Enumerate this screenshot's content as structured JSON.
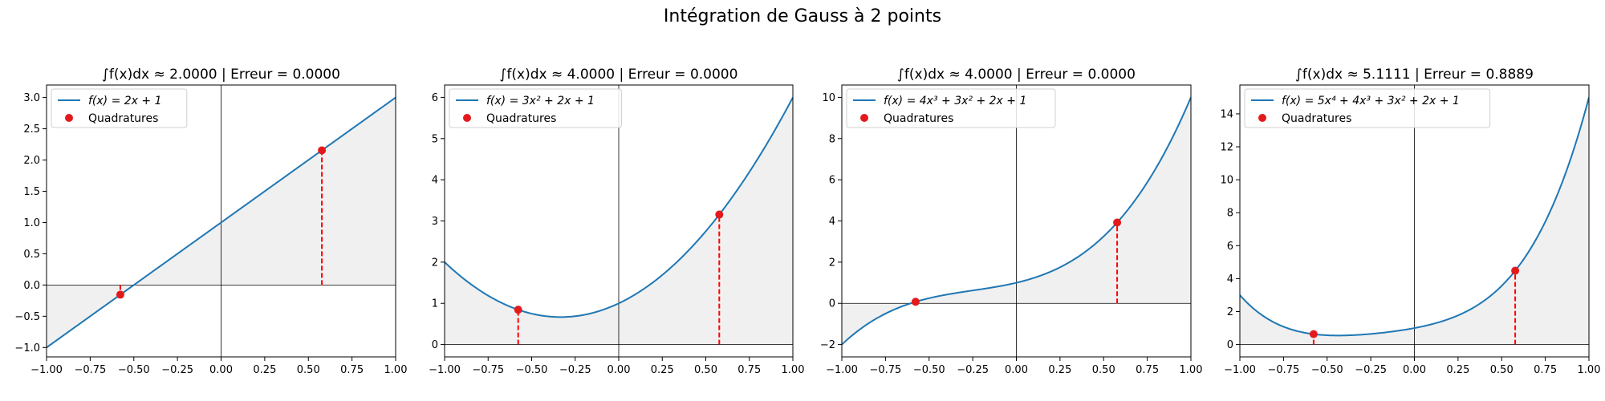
{
  "figure": {
    "title": "Intégration de Gauss à 2 points"
  },
  "colors": {
    "curve": "#1f77b4",
    "points": "#e31a1c",
    "stem": "#ff0000",
    "fill": "#f0f0f0",
    "axis_line": "#000000"
  },
  "chart_data": [
    {
      "type": "line",
      "title": "∫f(x)dx ≈ 2.0000 | Erreur = 0.0000",
      "series": [
        {
          "name": "f(x) = 2x + 1",
          "coefficients": [
            1,
            2
          ]
        },
        {
          "name": "Quadratures",
          "x": [
            -0.5774,
            0.5774
          ],
          "y": [
            -0.1547,
            2.1547
          ]
        }
      ],
      "xlim": [
        -1,
        1
      ],
      "ylim": [
        -1.15,
        3.2
      ],
      "xticks": [
        -1.0,
        -0.75,
        -0.5,
        -0.25,
        0.0,
        0.25,
        0.5,
        0.75,
        1.0
      ],
      "xtick_labels": [
        "−1.00",
        "−0.75",
        "−0.50",
        "−0.25",
        "0.00",
        "0.25",
        "0.50",
        "0.75",
        "1.00"
      ],
      "yticks": [
        -1.0,
        -0.5,
        0.0,
        0.5,
        1.0,
        1.5,
        2.0,
        2.5,
        3.0
      ],
      "ytick_labels": [
        "−1.0",
        "−0.5",
        "0.0",
        "0.5",
        "1.0",
        "1.5",
        "2.0",
        "2.5",
        "3.0"
      ],
      "legend": "top-left",
      "grid": false
    },
    {
      "type": "line",
      "title": "∫f(x)dx ≈ 4.0000 | Erreur = 0.0000",
      "series": [
        {
          "name": "f(x) = 3x² + 2x + 1",
          "coefficients": [
            1,
            2,
            3
          ]
        },
        {
          "name": "Quadratures",
          "x": [
            -0.5774,
            0.5774
          ],
          "y": [
            0.8453,
            3.1547
          ]
        }
      ],
      "xlim": [
        -1,
        1
      ],
      "ylim": [
        -0.3,
        6.3
      ],
      "xticks": [
        -1.0,
        -0.75,
        -0.5,
        -0.25,
        0.0,
        0.25,
        0.5,
        0.75,
        1.0
      ],
      "xtick_labels": [
        "−1.00",
        "−0.75",
        "−0.50",
        "−0.25",
        "0.00",
        "0.25",
        "0.50",
        "0.75",
        "1.00"
      ],
      "yticks": [
        0,
        1,
        2,
        3,
        4,
        5,
        6
      ],
      "ytick_labels": [
        "0",
        "1",
        "2",
        "3",
        "4",
        "5",
        "6"
      ],
      "legend": "top-left",
      "grid": false
    },
    {
      "type": "line",
      "title": "∫f(x)dx ≈ 4.0000 | Erreur = 0.0000",
      "series": [
        {
          "name": "f(x) = 4x³ + 3x² + 2x + 1",
          "coefficients": [
            1,
            2,
            3,
            4
          ]
        },
        {
          "name": "Quadratures",
          "x": [
            -0.5774,
            0.5774
          ],
          "y": [
            0.0755,
            3.9245
          ]
        }
      ],
      "xlim": [
        -1,
        1
      ],
      "ylim": [
        -2.6,
        10.6
      ],
      "xticks": [
        -1.0,
        -0.75,
        -0.5,
        -0.25,
        0.0,
        0.25,
        0.5,
        0.75,
        1.0
      ],
      "xtick_labels": [
        "−1.00",
        "−0.75",
        "−0.50",
        "−0.25",
        "0.00",
        "0.25",
        "0.50",
        "0.75",
        "1.00"
      ],
      "yticks": [
        -2,
        0,
        2,
        4,
        6,
        8,
        10
      ],
      "ytick_labels": [
        "−2",
        "0",
        "2",
        "4",
        "6",
        "8",
        "10"
      ],
      "legend": "top-left",
      "grid": false
    },
    {
      "type": "line",
      "title": "∫f(x)dx ≈ 5.1111 | Erreur = 0.8889",
      "series": [
        {
          "name": "f(x) = 5x⁴ + 4x³ + 3x² + 2x + 1",
          "coefficients": [
            1,
            2,
            3,
            4,
            5
          ]
        },
        {
          "name": "Quadratures",
          "x": [
            -0.5774,
            0.5774
          ],
          "y": [
            0.6311,
            4.48
          ]
        }
      ],
      "xlim": [
        -1,
        1
      ],
      "ylim": [
        -0.75,
        15.75
      ],
      "xticks": [
        -1.0,
        -0.75,
        -0.5,
        -0.25,
        0.0,
        0.25,
        0.5,
        0.75,
        1.0
      ],
      "xtick_labels": [
        "−1.00",
        "−0.75",
        "−0.50",
        "−0.25",
        "0.00",
        "0.25",
        "0.50",
        "0.75",
        "1.00"
      ],
      "yticks": [
        0,
        2,
        4,
        6,
        8,
        10,
        12,
        14
      ],
      "ytick_labels": [
        "0",
        "2",
        "4",
        "6",
        "8",
        "10",
        "12",
        "14"
      ],
      "legend": "top-left",
      "grid": false
    }
  ]
}
